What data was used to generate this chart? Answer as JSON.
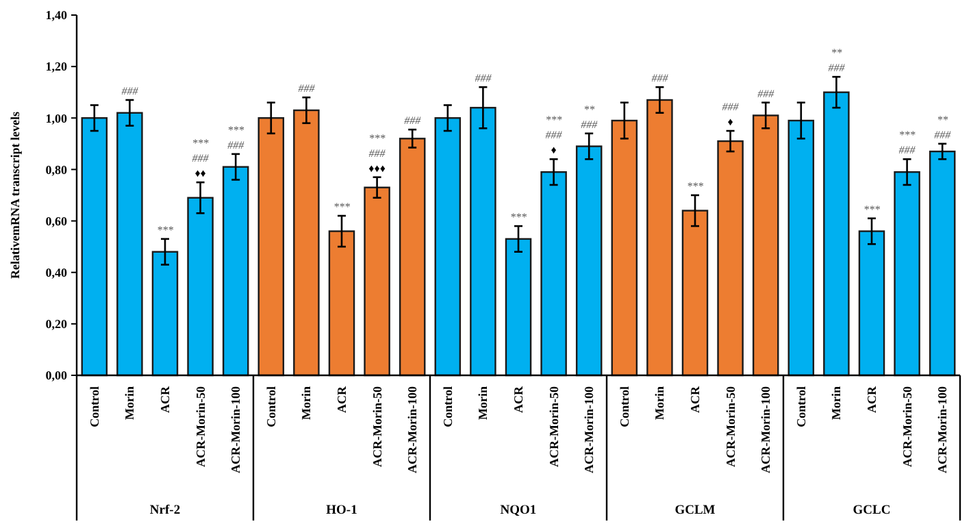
{
  "chart_data": {
    "type": "bar",
    "ylabel": "RelativemRNA transcript levels",
    "categories": [
      "Control",
      "Morin",
      "ACR",
      "ACR-Morin-50",
      "ACR-Morin-100",
      "Control",
      "Morin",
      "ACR",
      "ACR-Morin-50",
      "ACR-Morin-100",
      "Control",
      "Morin",
      "ACR",
      "ACR-Morin-50",
      "ACR-Morin-100",
      "Control",
      "Morin",
      "ACR",
      "ACR-Morin-50",
      "ACR-Morin-100",
      "Control",
      "Morin",
      "ACR",
      "ACR-Morin-50",
      "ACR-Morin-100"
    ],
    "values": [
      1.0,
      1.02,
      0.48,
      0.69,
      0.81,
      1.0,
      1.03,
      0.56,
      0.73,
      0.92,
      1.0,
      1.04,
      0.53,
      0.79,
      0.89,
      0.99,
      1.07,
      0.64,
      0.91,
      1.01,
      0.99,
      1.1,
      0.56,
      0.79,
      0.87
    ],
    "errors": [
      0.05,
      0.05,
      0.05,
      0.06,
      0.05,
      0.06,
      0.05,
      0.06,
      0.04,
      0.035,
      0.05,
      0.08,
      0.05,
      0.05,
      0.05,
      0.07,
      0.05,
      0.06,
      0.04,
      0.05,
      0.07,
      0.06,
      0.05,
      0.05,
      0.03
    ],
    "colors": [
      "#00b0f0",
      "#00b0f0",
      "#00b0f0",
      "#00b0f0",
      "#00b0f0",
      "#ed7d31",
      "#ed7d31",
      "#ed7d31",
      "#ed7d31",
      "#ed7d31",
      "#00b0f0",
      "#00b0f0",
      "#00b0f0",
      "#00b0f0",
      "#00b0f0",
      "#ed7d31",
      "#ed7d31",
      "#ed7d31",
      "#ed7d31",
      "#ed7d31",
      "#00b0f0",
      "#00b0f0",
      "#00b0f0",
      "#00b0f0",
      "#00b0f0"
    ],
    "value_labels": [
      null,
      "###",
      "***",
      "***\n###\n♦♦",
      "***\n###",
      null,
      "###",
      "***",
      "***\n###\n♦♦♦",
      "###",
      null,
      "###",
      "***",
      "***\n###\n♦",
      "**\n###",
      null,
      "###",
      "***",
      "###\n♦",
      "###",
      null,
      "**\n###",
      "***",
      "***\n###",
      "**\n###"
    ],
    "annotations": [
      "Nrf-2",
      "HO-1",
      "NQO1",
      "GCLM",
      "GCLC"
    ],
    "ylim": [
      0,
      1.4
    ],
    "yticks": [
      {
        "value": 0,
        "label": "0,00"
      },
      {
        "value": 0.2,
        "label": "0,20"
      },
      {
        "value": 0.4,
        "label": "0,40"
      },
      {
        "value": 0.6,
        "label": "0,60"
      },
      {
        "value": 0.8,
        "label": "0,80"
      },
      {
        "value": 1.0,
        "label": "1,00"
      },
      {
        "value": 1.2,
        "label": "1,20"
      },
      {
        "value": 1.4,
        "label": "1,40"
      }
    ],
    "grid": false
  }
}
